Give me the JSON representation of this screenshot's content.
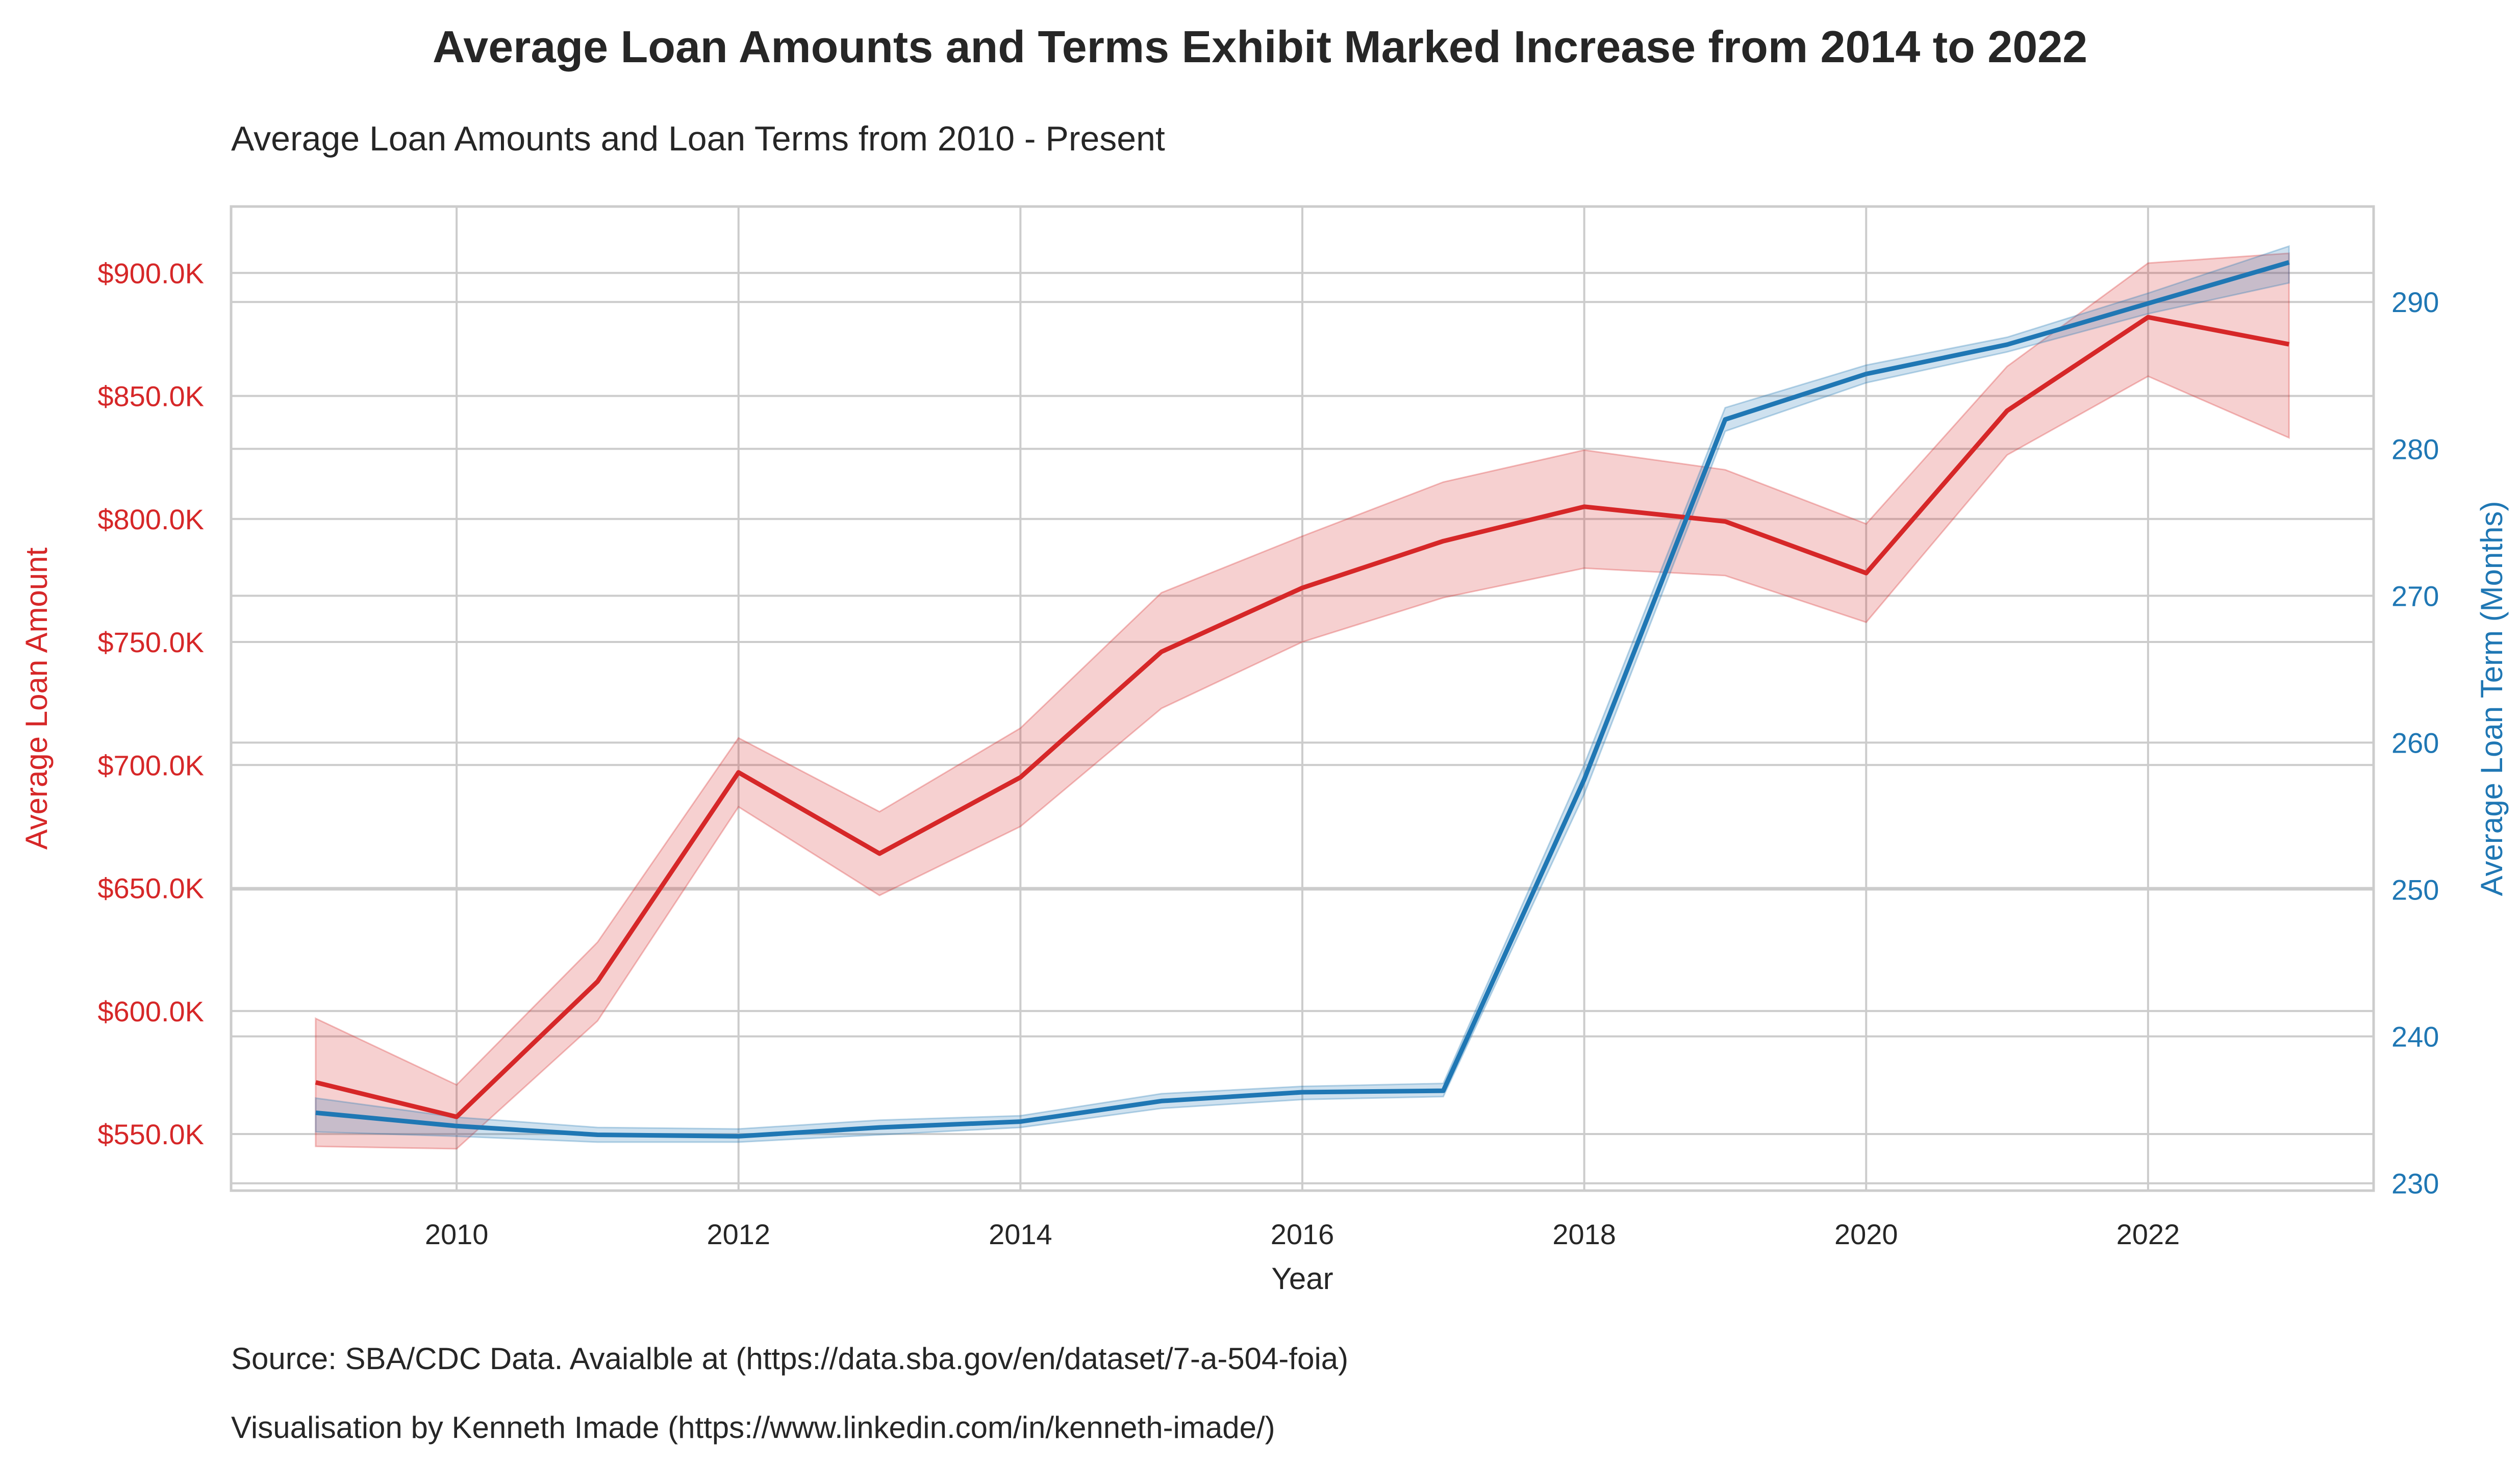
{
  "title": "Average Loan Amounts and Terms Exhibit Marked Increase from 2014 to 2022",
  "subtitle": "Average Loan Amounts and Loan Terms from 2010 - Present",
  "source_note": "Source: SBA/CDC Data. Avaialble at (https://data.sba.gov/en/dataset/7-a-504-foia)",
  "credit_note": "Visualisation by Kenneth Imade (https://www.linkedin.com/in/kenneth-imade/)",
  "colors": {
    "loan_amount": "#d62728",
    "loan_term": "#1f77b4",
    "grid": "#cccccc",
    "text": "#262626"
  },
  "chart_data": {
    "type": "line",
    "grid": true,
    "xlabel": "Year",
    "x": [
      2009,
      2010,
      2011,
      2012,
      2013,
      2014,
      2015,
      2016,
      2017,
      2018,
      2019,
      2020,
      2021,
      2022,
      2023
    ],
    "xlim": [
      2008.4,
      2023.6
    ],
    "xticks": [
      2010,
      2012,
      2014,
      2016,
      2018,
      2020,
      2022
    ],
    "xtick_labels": [
      "2010",
      "2012",
      "2014",
      "2016",
      "2018",
      "2020",
      "2022"
    ],
    "left_axis": {
      "label": "Average Loan Amount",
      "ylim": [
        527000,
        927000
      ],
      "ticks": [
        550000,
        600000,
        650000,
        700000,
        750000,
        800000,
        850000,
        900000
      ],
      "tick_labels": [
        "$550.0K",
        "$600.0K",
        "$650.0K",
        "$700.0K",
        "$750.0K",
        "$800.0K",
        "$850.0K",
        "$900.0K"
      ]
    },
    "right_axis": {
      "label": "Average Loan Term (Months)",
      "ylim": [
        229.5,
        296.5
      ],
      "ticks": [
        230,
        240,
        250,
        260,
        270,
        280,
        290
      ],
      "tick_labels": [
        "230",
        "240",
        "250",
        "260",
        "270",
        "280",
        "290"
      ]
    },
    "series": [
      {
        "axis": "left",
        "color": "#d62728",
        "values": [
          571000,
          557000,
          612000,
          697000,
          664000,
          695000,
          746000,
          772000,
          791000,
          805000,
          799000,
          778000,
          844000,
          882000,
          871000
        ],
        "ci_low": [
          545000,
          544000,
          596000,
          683000,
          647000,
          675000,
          723000,
          750000,
          768000,
          780000,
          777000,
          758000,
          826000,
          858000,
          833000
        ],
        "ci_high": [
          597000,
          570000,
          628000,
          711000,
          681000,
          715000,
          770000,
          793000,
          815000,
          828000,
          820000,
          798000,
          862000,
          904000,
          908000
        ]
      },
      {
        "axis": "right",
        "color": "#1f77b4",
        "values": [
          234.8,
          233.9,
          233.3,
          233.2,
          233.8,
          234.2,
          235.6,
          236.2,
          236.3,
          257.5,
          282.0,
          285.1,
          287.1,
          289.9,
          292.7
        ],
        "ci_low": [
          233.5,
          233.2,
          232.8,
          232.8,
          233.3,
          233.8,
          235.1,
          235.7,
          235.9,
          256.5,
          281.2,
          284.5,
          286.6,
          289.2,
          291.3
        ],
        "ci_high": [
          235.8,
          234.5,
          233.8,
          233.7,
          234.3,
          234.6,
          236.1,
          236.6,
          236.8,
          258.5,
          282.8,
          285.7,
          287.6,
          290.6,
          293.8
        ]
      }
    ]
  }
}
